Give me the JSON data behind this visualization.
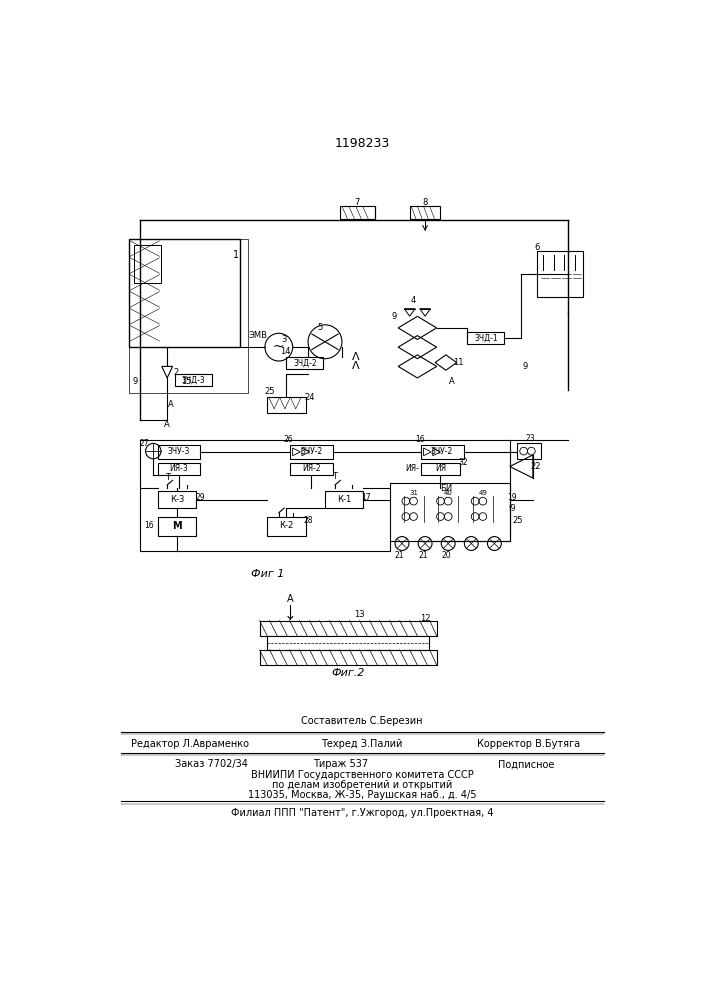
{
  "patent_number": "1198233",
  "fig1_caption": "Фиг 1",
  "fig2_caption": "Фиг.2",
  "editor_line": "Редактор Л.Авраменко",
  "compiler_line": "Составитель С.Березин",
  "corrector_line": "Корректор В.Бутяга",
  "techred_line": "Техред З.Палий",
  "order_line": "Заказ 7702/34",
  "circulation_line": "Тираж 537",
  "subscription_line": "Подписное",
  "institute_line1": "ВНИИПИ Государственного комитета СССР",
  "institute_line2": "по делам изобретений и открытий",
  "institute_line3": "113035, Москва, Ж-35, Раушская наб., д. 4/5",
  "branch_line": "Филиал ППП \"Патент\", г.Ужгород, ул.Проектная, 4",
  "bg_color": "#ffffff"
}
